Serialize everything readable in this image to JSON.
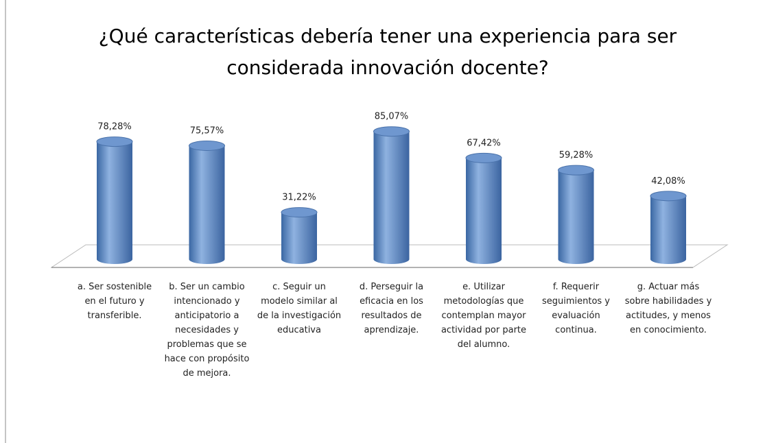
{
  "chart_data": {
    "type": "bar3d",
    "title": "¿Qué características debería tener una experiencia para ser considerada innovación docente?",
    "categories": [
      "a. Ser sostenible en el futuro y transferible.",
      "b. Ser un cambio intencionado y anticipatorio a necesidades y problemas que se hace con propósito de mejora.",
      "c. Seguir un modelo similar al de la investigación educativa",
      "d. Perseguir la eficacia en los resultados de aprendizaje.",
      "e. Utilizar metodologías que contemplan mayor actividad por parte del alumno.",
      "f. Requerir seguimientos y evaluación continua.",
      "g. Actuar más sobre habilidades y actitudes, y menos en conocimiento."
    ],
    "values": [
      78.28,
      75.57,
      31.22,
      85.07,
      67.42,
      59.28,
      42.08
    ],
    "value_labels": [
      "78,28%",
      "75,57%",
      "31,22%",
      "85,07%",
      "67,42%",
      "59,28%",
      "42,08%"
    ],
    "color": "#4f81bd"
  }
}
